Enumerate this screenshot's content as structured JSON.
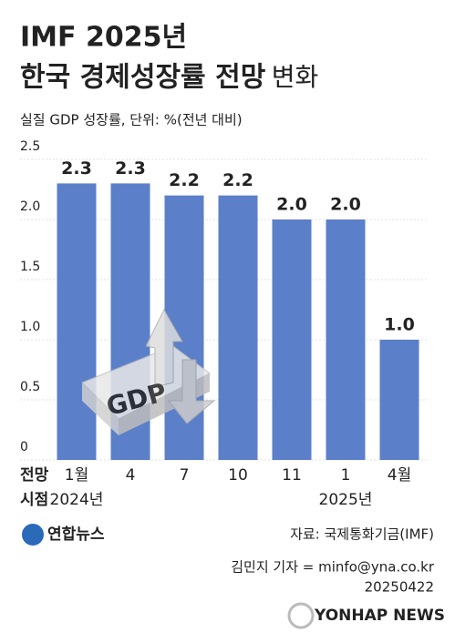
{
  "chart_data": {
    "type": "bar",
    "title": [
      "IMF 2025년",
      "한국 경제성장률 전망"
    ],
    "title_suffix": "변화",
    "subtitle": "실질 GDP 성장률, 단위: %(전년 대비)",
    "row_labels": [
      "전망",
      "시점"
    ],
    "categories": [
      "1월",
      "4",
      "7",
      "10",
      "11",
      "1",
      "4월"
    ],
    "year_labels": [
      "2024년",
      null,
      null,
      null,
      null,
      "2025년",
      null
    ],
    "values": [
      2.3,
      2.3,
      2.2,
      2.2,
      2.0,
      2.0,
      1.0
    ],
    "value_labels": [
      "2.3",
      "2.3",
      "2.2",
      "2.2",
      "2.0",
      "2.0",
      "1.0"
    ],
    "color": "#5b7fc9",
    "ylim": [
      0,
      2.5
    ],
    "yticks": [
      0,
      0.5,
      {
        "value": 1,
        "label": "1.0"
      },
      1.5,
      {
        "value": 2,
        "label": "2.0"
      },
      2.5
    ],
    "grid": true,
    "annotations": [
      "GDP"
    ],
    "source": "자료: 국제통화기금(IMF)",
    "credit": "김민지 기자 = minfo@yna.co.kr",
    "date": "20250422",
    "logo": "연합뉴스",
    "watermark": "YONHAP NEWS"
  }
}
